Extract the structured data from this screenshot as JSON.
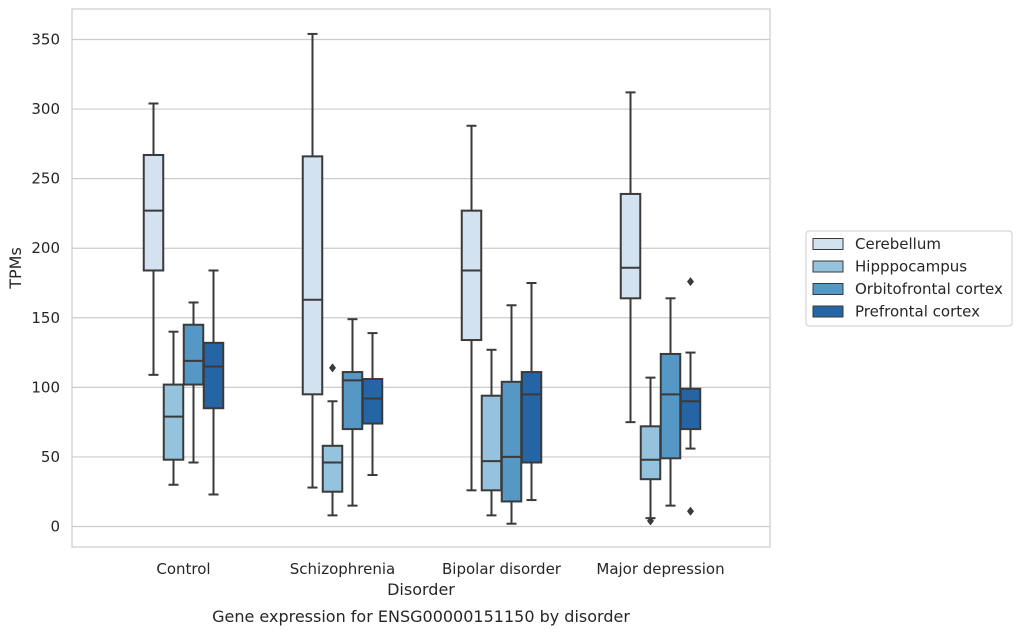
{
  "chart_data": {
    "type": "box",
    "title": "",
    "caption": "Gene expression for ENSG00000151150 by disorder",
    "xlabel": "Disorder",
    "ylabel": "TPMs",
    "ylim": [
      -15,
      372
    ],
    "yticks": [
      0,
      50,
      100,
      150,
      200,
      250,
      300,
      350
    ],
    "grid": "horizontal",
    "legend_position": "right",
    "categories": [
      "Control",
      "Schizophrenia",
      "Bipolar disorder",
      "Major depression"
    ],
    "series": [
      {
        "name": "Cerebellum",
        "color": "#d3e2f1",
        "boxes": [
          {
            "whisker_low": 109,
            "q1": 184,
            "median": 227,
            "q3": 267,
            "whisker_high": 304,
            "outliers": []
          },
          {
            "whisker_low": 28,
            "q1": 95,
            "median": 163,
            "q3": 266,
            "whisker_high": 354,
            "outliers": []
          },
          {
            "whisker_low": 26,
            "q1": 134,
            "median": 184,
            "q3": 227,
            "whisker_high": 288,
            "outliers": []
          },
          {
            "whisker_low": 75,
            "q1": 164,
            "median": 186,
            "q3": 239,
            "whisker_high": 312,
            "outliers": []
          }
        ]
      },
      {
        "name": "Hipppocampus",
        "color": "#95c2dd",
        "boxes": [
          {
            "whisker_low": 30,
            "q1": 48,
            "median": 79,
            "q3": 102,
            "whisker_high": 140,
            "outliers": []
          },
          {
            "whisker_low": 8,
            "q1": 25,
            "median": 46,
            "q3": 58,
            "whisker_high": 90,
            "outliers": [
              114
            ]
          },
          {
            "whisker_low": 8,
            "q1": 26,
            "median": 47,
            "q3": 94,
            "whisker_high": 127,
            "outliers": []
          },
          {
            "whisker_low": 6,
            "q1": 34,
            "median": 48,
            "q3": 72,
            "whisker_high": 107,
            "outliers": [
              4
            ]
          }
        ]
      },
      {
        "name": "Orbitofrontal cortex",
        "color": "#5597c5",
        "boxes": [
          {
            "whisker_low": 46,
            "q1": 102,
            "median": 119,
            "q3": 145,
            "whisker_high": 161,
            "outliers": []
          },
          {
            "whisker_low": 15,
            "q1": 70,
            "median": 105,
            "q3": 111,
            "whisker_high": 149,
            "outliers": []
          },
          {
            "whisker_low": 2,
            "q1": 18,
            "median": 50,
            "q3": 104,
            "whisker_high": 159,
            "outliers": []
          },
          {
            "whisker_low": 15,
            "q1": 49,
            "median": 95,
            "q3": 124,
            "whisker_high": 164,
            "outliers": []
          }
        ]
      },
      {
        "name": "Prefrontal cortex",
        "color": "#2565a6",
        "boxes": [
          {
            "whisker_low": 23,
            "q1": 85,
            "median": 115,
            "q3": 132,
            "whisker_high": 184,
            "outliers": []
          },
          {
            "whisker_low": 37,
            "q1": 74,
            "median": 92,
            "q3": 106,
            "whisker_high": 139,
            "outliers": []
          },
          {
            "whisker_low": 19,
            "q1": 46,
            "median": 95,
            "q3": 111,
            "whisker_high": 175,
            "outliers": []
          },
          {
            "whisker_low": 56,
            "q1": 70,
            "median": 90,
            "q3": 99,
            "whisker_high": 125,
            "outliers": [
              176,
              11
            ]
          }
        ]
      }
    ]
  }
}
